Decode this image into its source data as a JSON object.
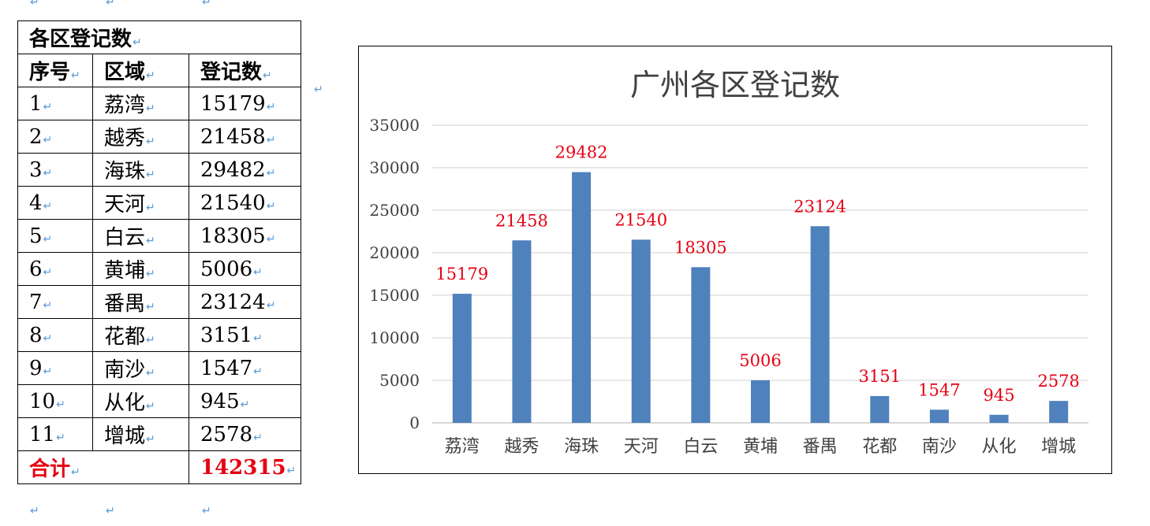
{
  "paragraph_mark": "↵",
  "table": {
    "caption": "各区登记数",
    "headers": [
      "序号",
      "区域",
      "登记数"
    ],
    "rows": [
      [
        "1",
        "荔湾",
        "15179"
      ],
      [
        "2",
        "越秀",
        "21458"
      ],
      [
        "3",
        "海珠",
        "29482"
      ],
      [
        "4",
        "天河",
        "21540"
      ],
      [
        "5",
        "白云",
        "18305"
      ],
      [
        "6",
        "黄埔",
        "5006"
      ],
      [
        "7",
        "番禺",
        "23124"
      ],
      [
        "8",
        "花都",
        "3151"
      ],
      [
        "9",
        "南沙",
        "1547"
      ],
      [
        "10",
        "从化",
        "945"
      ],
      [
        "11",
        "增城",
        "2578"
      ]
    ],
    "total_label": "合计",
    "total_value": "142315",
    "total_color": "#e60012"
  },
  "chart_data": {
    "type": "bar",
    "title": "广州各区登记数",
    "categories": [
      "荔湾",
      "越秀",
      "海珠",
      "天河",
      "白云",
      "黄埔",
      "番禺",
      "花都",
      "南沙",
      "从化",
      "增城"
    ],
    "values": [
      15179,
      21458,
      29482,
      21540,
      18305,
      5006,
      23124,
      3151,
      1547,
      945,
      2578
    ],
    "ylim": [
      0,
      35000
    ],
    "yticks": [
      0,
      5000,
      10000,
      15000,
      20000,
      25000,
      30000,
      35000
    ],
    "grid": true,
    "data_labels": true,
    "bar_color": "#4f81bd",
    "label_color": "#e60012",
    "axis_text_color": "#404040",
    "grid_color": "#d9d9d9"
  }
}
